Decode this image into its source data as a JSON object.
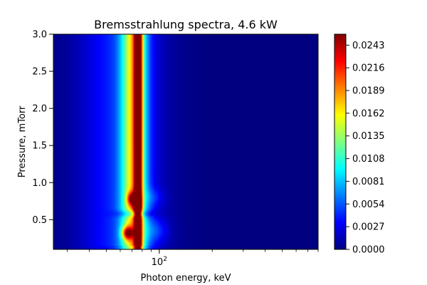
{
  "chart_data": {
    "type": "heatmap",
    "title": "Bremsstrahlung spectra, 4.6 kW",
    "xlabel": "Photon energy, keV",
    "ylabel": "Pressure, mTorr",
    "x_scale": "log",
    "xlim": [
      25,
      800
    ],
    "ylim": [
      0.1,
      3.0
    ],
    "x_ticks": [
      {
        "value": 100,
        "base": "10",
        "exp": "2"
      }
    ],
    "y_ticks": [
      0.5,
      1.0,
      1.5,
      2.0,
      2.5,
      3.0
    ],
    "y_tick_labels": [
      "0.5",
      "1.0",
      "1.5",
      "2.0",
      "2.5",
      "3.0"
    ],
    "colormap": "jet",
    "colorbar": {
      "min": 0.0,
      "max": 0.0256,
      "ticks": [
        0.0,
        0.0027,
        0.0054,
        0.0081,
        0.0108,
        0.0135,
        0.0162,
        0.0189,
        0.0216,
        0.0243
      ],
      "tick_labels": [
        "0.0000",
        "0.0027",
        "0.0054",
        "0.0081",
        "0.0108",
        "0.0135",
        "0.0162",
        "0.0189",
        "0.0216",
        "0.0243"
      ]
    },
    "peaks": [
      {
        "energy_keV": 66,
        "pressure_mTorr": 0.32,
        "intensity": 0.025
      },
      {
        "energy_keV": 70,
        "pressure_mTorr": 0.78,
        "intensity": 0.024
      },
      {
        "energy_keV": 75,
        "pressure_mTorr": 0.7,
        "intensity": 0.022
      },
      {
        "energy_keV": 76,
        "pressure_mTorr": 2.0,
        "intensity": 0.019
      }
    ],
    "grid": false,
    "legend": "none"
  }
}
